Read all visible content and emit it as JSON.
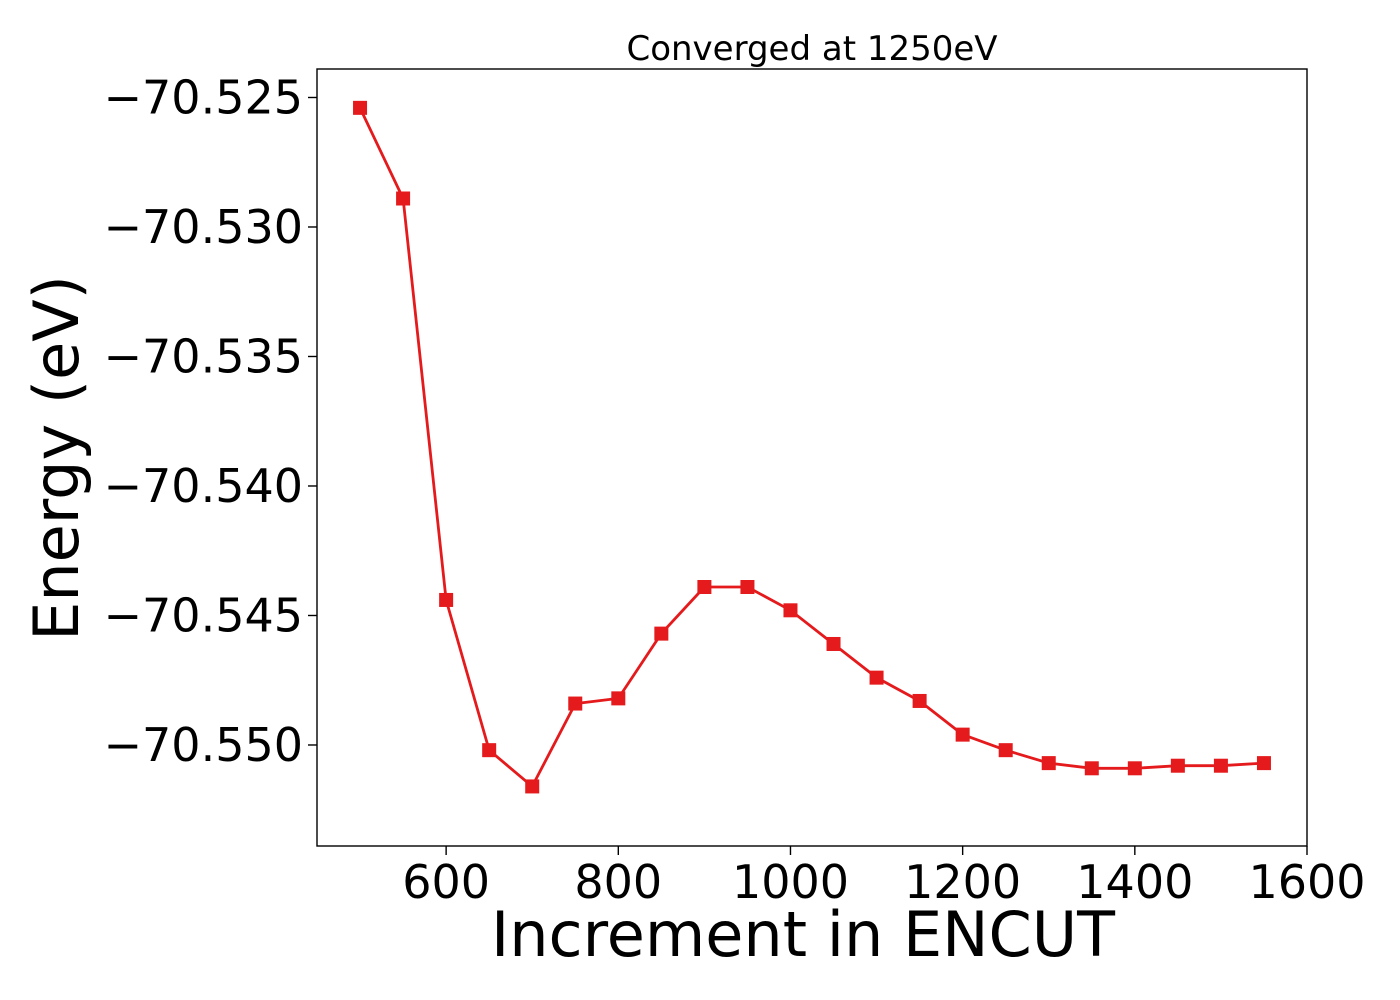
{
  "chart_data": {
    "type": "line",
    "title": "Converged at 1250eV",
    "xlabel": "Increment in ENCUT",
    "ylabel": "Energy (eV)",
    "xlim": [
      450,
      1600
    ],
    "ylim": [
      -70.5539,
      -70.5239
    ],
    "x_ticks": [
      600,
      800,
      1000,
      1200,
      1400,
      1600
    ],
    "x_tick_labels": [
      "600",
      "800",
      "1000",
      "1200",
      "1400",
      "1600"
    ],
    "y_ticks": [
      -70.525,
      -70.53,
      -70.535,
      -70.54,
      -70.545,
      -70.55
    ],
    "y_tick_labels": [
      "−70.525",
      "−70.530",
      "−70.535",
      "−70.540",
      "−70.545",
      "−70.550"
    ],
    "grid": false,
    "series": [
      {
        "color": "#e41a1c",
        "marker": "square",
        "x": [
          500,
          550,
          600,
          650,
          700,
          750,
          800,
          850,
          900,
          950,
          1000,
          1050,
          1100,
          1150,
          1200,
          1250,
          1300,
          1350,
          1400,
          1450,
          1500,
          1550
        ],
        "values": [
          -70.5254,
          -70.5289,
          -70.5444,
          -70.5502,
          -70.5516,
          -70.5484,
          -70.5482,
          -70.5457,
          -70.5439,
          -70.5439,
          -70.5448,
          -70.5461,
          -70.5474,
          -70.5483,
          -70.5496,
          -70.5502,
          -70.5507,
          -70.5509,
          -70.5509,
          -70.5508,
          -70.5508,
          -70.5507
        ]
      }
    ]
  }
}
